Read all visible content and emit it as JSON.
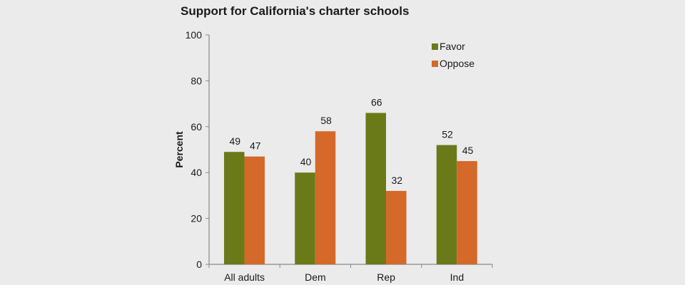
{
  "chart_data": {
    "type": "bar",
    "title": "Support for California's charter schools",
    "xlabel": "",
    "ylabel": "Percent",
    "ylim": [
      0,
      100
    ],
    "yticks": [
      0,
      20,
      40,
      60,
      80,
      100
    ],
    "categories": [
      "All adults",
      "Dem",
      "Rep",
      "Ind"
    ],
    "series": [
      {
        "name": "Favor",
        "values": [
          49,
          40,
          66,
          52
        ],
        "color": "#6a7a18"
      },
      {
        "name": "Oppose",
        "values": [
          47,
          58,
          32,
          45
        ],
        "color": "#d4692a"
      }
    ],
    "grid": false,
    "legend_position": "top-right",
    "data_labels": true
  }
}
